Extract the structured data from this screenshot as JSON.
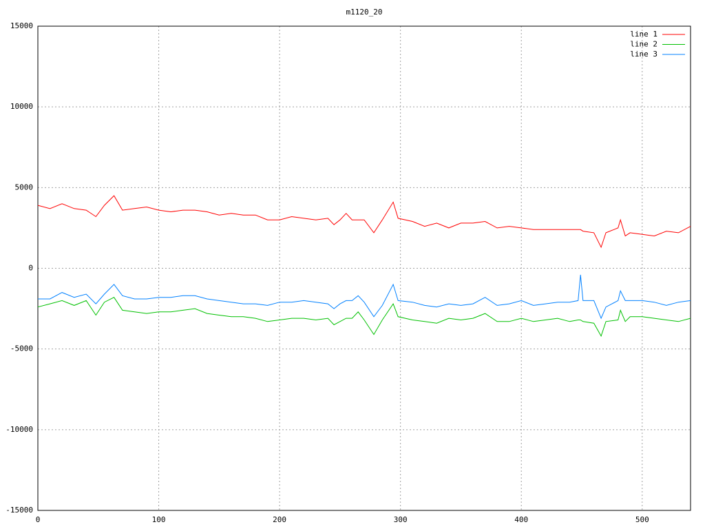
{
  "chart_data": {
    "type": "line",
    "title": "m1120_20",
    "x": [
      0,
      10,
      20,
      30,
      40,
      48,
      55,
      63,
      70,
      80,
      90,
      100,
      110,
      120,
      130,
      140,
      150,
      160,
      170,
      180,
      190,
      200,
      210,
      220,
      230,
      240,
      245,
      250,
      255,
      260,
      265,
      270,
      278,
      285,
      294,
      298,
      310,
      320,
      330,
      340,
      350,
      360,
      370,
      380,
      390,
      400,
      410,
      420,
      430,
      440,
      447,
      449,
      451,
      460,
      466,
      470,
      480,
      482,
      486,
      490,
      500,
      510,
      520,
      530,
      540
    ],
    "series": [
      {
        "name": "line 1",
        "color": "#ff0000",
        "values": [
          3900,
          3700,
          4000,
          3700,
          3600,
          3200,
          3900,
          4500,
          3600,
          3700,
          3800,
          3600,
          3500,
          3600,
          3600,
          3500,
          3300,
          3400,
          3300,
          3300,
          3000,
          3000,
          3200,
          3100,
          3000,
          3100,
          2700,
          3000,
          3400,
          3000,
          3000,
          3000,
          2200,
          3000,
          4100,
          3100,
          2900,
          2600,
          2800,
          2500,
          2800,
          2800,
          2900,
          2500,
          2600,
          2500,
          2400,
          2400,
          2400,
          2400,
          2400,
          2400,
          2300,
          2200,
          1300,
          2200,
          2500,
          3000,
          2000,
          2200,
          2100,
          2000,
          2300,
          2200,
          2600
        ]
      },
      {
        "name": "line 2",
        "color": "#00c000",
        "values": [
          -2400,
          -2200,
          -2000,
          -2300,
          -2000,
          -2900,
          -2100,
          -1800,
          -2600,
          -2700,
          -2800,
          -2700,
          -2700,
          -2600,
          -2500,
          -2800,
          -2900,
          -3000,
          -3000,
          -3100,
          -3300,
          -3200,
          -3100,
          -3100,
          -3200,
          -3100,
          -3500,
          -3300,
          -3100,
          -3100,
          -2700,
          -3200,
          -4100,
          -3200,
          -2200,
          -3000,
          -3200,
          -3300,
          -3400,
          -3100,
          -3200,
          -3100,
          -2800,
          -3300,
          -3300,
          -3100,
          -3300,
          -3200,
          -3100,
          -3300,
          -3200,
          -3200,
          -3300,
          -3400,
          -4200,
          -3300,
          -3200,
          -2600,
          -3300,
          -3000,
          -3000,
          -3100,
          -3200,
          -3300,
          -3100
        ]
      },
      {
        "name": "line 3",
        "color": "#0080ff",
        "values": [
          -1900,
          -1900,
          -1500,
          -1800,
          -1600,
          -2200,
          -1600,
          -1000,
          -1700,
          -1900,
          -1900,
          -1800,
          -1800,
          -1700,
          -1700,
          -1900,
          -2000,
          -2100,
          -2200,
          -2200,
          -2300,
          -2100,
          -2100,
          -2000,
          -2100,
          -2200,
          -2500,
          -2200,
          -2000,
          -2000,
          -1700,
          -2100,
          -3000,
          -2300,
          -1000,
          -2000,
          -2100,
          -2300,
          -2400,
          -2200,
          -2300,
          -2200,
          -1800,
          -2300,
          -2200,
          -2000,
          -2300,
          -2200,
          -2100,
          -2100,
          -2000,
          -400,
          -2000,
          -2000,
          -3100,
          -2400,
          -2000,
          -1400,
          -2000,
          -2000,
          -2000,
          -2100,
          -2300,
          -2100,
          -2000
        ]
      }
    ],
    "xlim": [
      0,
      540
    ],
    "ylim": [
      -15000,
      15000
    ],
    "xticks": [
      0,
      100,
      200,
      300,
      400,
      500
    ],
    "yticks": [
      -15000,
      -10000,
      -5000,
      0,
      5000,
      10000,
      15000
    ],
    "grid": true,
    "legend": "top-right"
  }
}
